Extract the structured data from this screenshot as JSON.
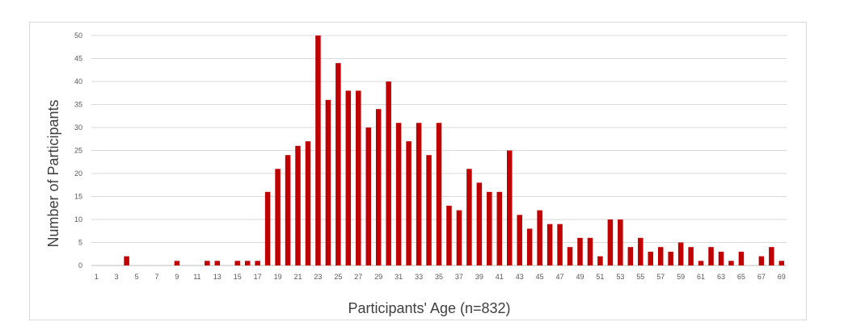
{
  "chart_data": {
    "type": "bar",
    "title": "",
    "xlabel": "Participants' Age (n=832)",
    "ylabel": "Number of Participants",
    "ylim": [
      0,
      50
    ],
    "yticks": [
      0,
      5,
      10,
      15,
      20,
      25,
      30,
      35,
      40,
      45,
      50
    ],
    "grid": "horizontal",
    "legend": "none",
    "bar_color": "#C00000",
    "categories": [
      1,
      2,
      3,
      4,
      5,
      6,
      7,
      8,
      9,
      10,
      11,
      12,
      13,
      14,
      15,
      16,
      17,
      18,
      19,
      20,
      21,
      22,
      23,
      24,
      25,
      26,
      27,
      28,
      29,
      30,
      31,
      32,
      33,
      34,
      35,
      36,
      37,
      38,
      39,
      40,
      41,
      42,
      43,
      44,
      45,
      46,
      47,
      48,
      49,
      50,
      51,
      52,
      53,
      54,
      55,
      56,
      57,
      58,
      59,
      60,
      61,
      62,
      63,
      64,
      65,
      66,
      67,
      68,
      69
    ],
    "tick_labels": [
      "1",
      "3",
      "5",
      "7",
      "9",
      "11",
      "13",
      "15",
      "17",
      "19",
      "21",
      "23",
      "25",
      "27",
      "29",
      "31",
      "33",
      "35",
      "37",
      "39",
      "41",
      "43",
      "45",
      "47",
      "49",
      "51",
      "53",
      "55",
      "57",
      "59",
      "61",
      "63",
      "65",
      "67",
      "69"
    ],
    "values": [
      0,
      0,
      0,
      2,
      0,
      0,
      0,
      0,
      1,
      0,
      0,
      1,
      1,
      0,
      1,
      1,
      1,
      16,
      21,
      24,
      26,
      27,
      50,
      36,
      44,
      38,
      38,
      30,
      34,
      40,
      31,
      27,
      31,
      24,
      31,
      13,
      12,
      21,
      18,
      16,
      16,
      25,
      11,
      8,
      12,
      9,
      9,
      4,
      6,
      6,
      2,
      10,
      10,
      4,
      6,
      3,
      4,
      3,
      5,
      4,
      1,
      4,
      3,
      1,
      3,
      0,
      2,
      4,
      1
    ]
  }
}
